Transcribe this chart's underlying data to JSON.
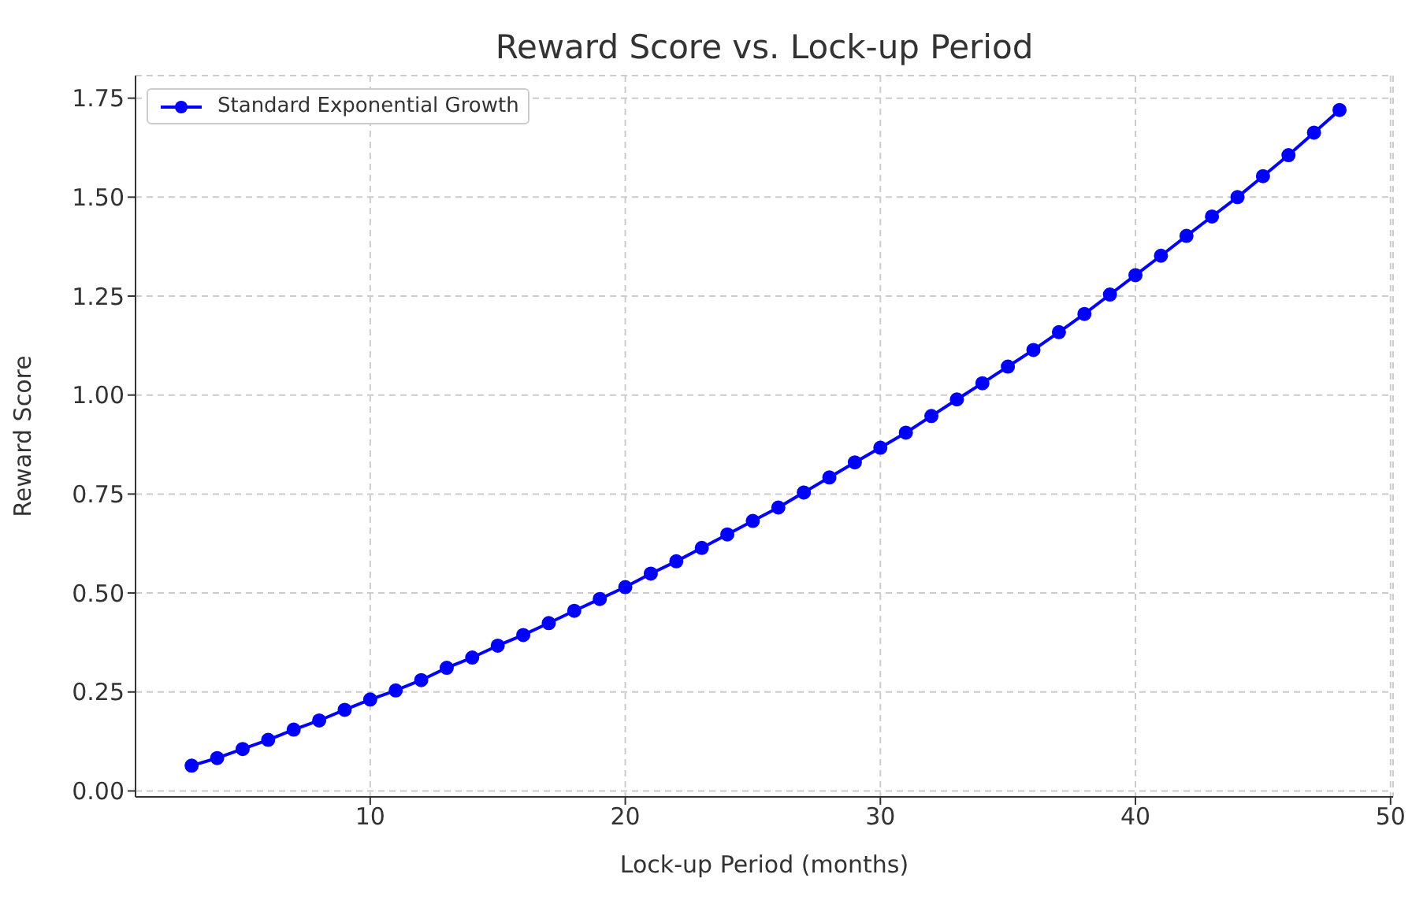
{
  "chart_data": {
    "type": "line",
    "title": "Reward Score vs. Lock-up Period",
    "xlabel": "Lock-up Period (months)",
    "ylabel": "Reward Score",
    "x": [
      3,
      4,
      5,
      6,
      7,
      8,
      9,
      10,
      11,
      12,
      13,
      14,
      15,
      16,
      17,
      18,
      19,
      20,
      21,
      22,
      23,
      24,
      25,
      26,
      27,
      28,
      29,
      30,
      31,
      32,
      33,
      34,
      35,
      36,
      37,
      38,
      39,
      40,
      41,
      42,
      43,
      44,
      45,
      46,
      47,
      48
    ],
    "series": [
      {
        "name": "Standard Exponential Growth",
        "color": "#0000ff",
        "values": [
          0.064,
          0.083,
          0.106,
          0.129,
          0.155,
          0.178,
          0.205,
          0.231,
          0.254,
          0.28,
          0.311,
          0.337,
          0.367,
          0.394,
          0.424,
          0.455,
          0.485,
          0.515,
          0.549,
          0.58,
          0.614,
          0.648,
          0.682,
          0.716,
          0.754,
          0.792,
          0.83,
          0.867,
          0.905,
          0.947,
          0.989,
          1.03,
          1.072,
          1.114,
          1.159,
          1.205,
          1.254,
          1.303,
          1.352,
          1.402,
          1.451,
          1.5,
          1.553,
          1.606,
          1.663,
          1.72
        ]
      }
    ],
    "xlim": [
      0.8,
      50.1
    ],
    "xticks": [
      10,
      20,
      30,
      40,
      50
    ],
    "ylim": [
      -0.015,
      1.807
    ],
    "yticks": [
      {
        "value": 0,
        "label": "0.00"
      },
      {
        "value": 0.25,
        "label": "0.25"
      },
      {
        "value": 0.5,
        "label": "0.50"
      },
      {
        "value": 0.75,
        "label": "0.75"
      },
      {
        "value": 1,
        "label": "1.00"
      },
      {
        "value": 1.25,
        "label": "1.25"
      },
      {
        "value": 1.5,
        "label": "1.50"
      },
      {
        "value": 1.75,
        "label": "1.75"
      }
    ],
    "grid": true,
    "legend": "top left",
    "marker": "circle",
    "line_style": "solid"
  }
}
